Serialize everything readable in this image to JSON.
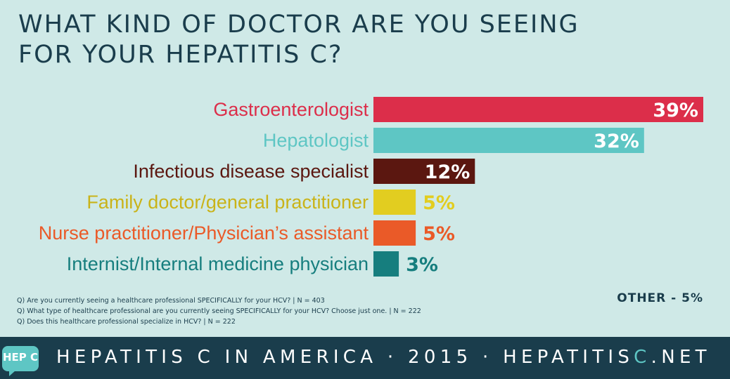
{
  "title_line1": "WHAT KIND OF DOCTOR ARE YOU SEEING",
  "title_line2": "FOR YOUR HEPATITIS C?",
  "chart_data": {
    "type": "bar",
    "orientation": "horizontal",
    "title": "WHAT KIND OF DOCTOR ARE YOU SEEING FOR YOUR HEPATITIS C?",
    "unit": "%",
    "categories": [
      "Gastroenterologist",
      "Hepatologist",
      "Infectious disease specialist",
      "Family doctor/general practitioner",
      "Nurse practitioner/Physician’s assistant",
      "Internist/Internal medicine physician"
    ],
    "values": [
      39,
      32,
      12,
      5,
      5,
      3
    ],
    "value_labels": [
      "39%",
      "32%",
      "12%",
      "5%",
      "5%",
      "3%"
    ],
    "colors": [
      "#dc2e4a",
      "#5ec6c4",
      "#5b1710",
      "#e2cd20",
      "#ea5a28",
      "#167e7e"
    ],
    "label_colors": [
      "#dc2e4a",
      "#5ec6c4",
      "#5b1710",
      "#c9b319",
      "#ea5a28",
      "#167e7e"
    ],
    "value_inside": [
      true,
      true,
      true,
      false,
      false,
      false
    ],
    "xlim": [
      0,
      39
    ]
  },
  "notes": [
    "Q) Are you currently seeing a healthcare professional SPECIFICALLY for your HCV? | N = 403",
    "Q) What type of healthcare professional are you currently seeing SPECIFICALLY for your HCV? Choose just one. | N = 222",
    "Q) Does this healthcare professional specialize in HCV? | N = 222"
  ],
  "other_label": "OTHER - 5%",
  "footer": {
    "logo_text": "HEP C",
    "text_main": "HEPATITIS C IN AMERICA · 2015 · HEPATITIS",
    "text_accent": "C",
    "text_end": ".NET"
  },
  "colors": {
    "background": "#cfe9e7",
    "title": "#1a3d4c",
    "footer_bg": "#1a3d4c",
    "accent": "#5ec6c4"
  }
}
